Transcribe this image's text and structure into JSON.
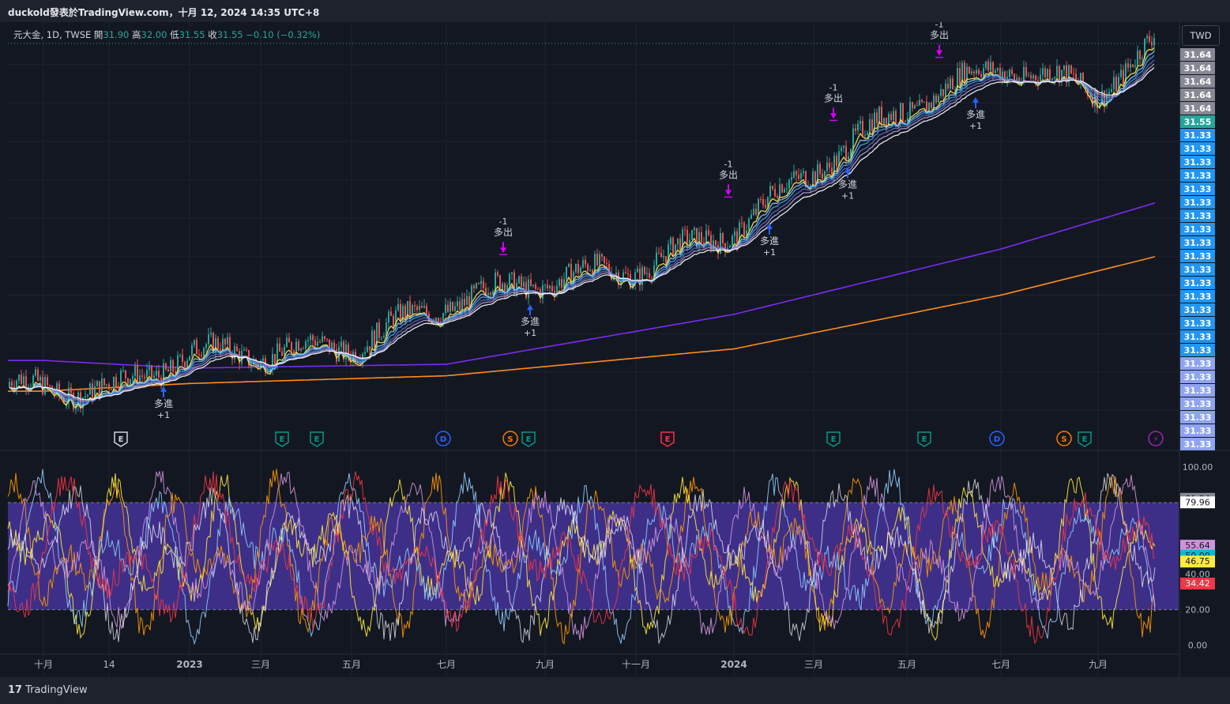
{
  "header": {
    "title": "duckold發表於TradingView.com，十月 12, 2024 14:35 UTC+8"
  },
  "legend": {
    "symbol": "元大金, 1D, TWSE",
    "open_label": "開",
    "open": "31.90",
    "high_label": "高",
    "high": "32.00",
    "low_label": "低",
    "low": "31.55",
    "close_label": "收",
    "close": "31.55",
    "change": "−0.10 (−0.32%)"
  },
  "currency_button": "TWD",
  "footer": {
    "logo_glyph": "17",
    "brand": "TradingView"
  },
  "colors": {
    "background": "#131722",
    "up": "#26a69a",
    "down": "#ef5350",
    "ma_long": "#7b2cf0",
    "ma_longer": "#ff8c1a",
    "ma_short": "#ffe94d",
    "sell_marker": "#d500f9",
    "buy_marker": "#2962ff",
    "osc_band": "#3d2f88"
  },
  "chart_data": [
    {
      "type": "candlestick",
      "symbol": "元大金",
      "x_ticks": [
        "十月",
        "14",
        "2023",
        "三月",
        "五月",
        "七月",
        "九月",
        "十一月",
        "2024",
        "三月",
        "五月",
        "七月",
        "九月"
      ],
      "ylim": [
        21.0,
        31.9
      ],
      "last_close": 31.55,
      "close_path": [
        [
          "十月",
          22.6
        ],
        [
          "14",
          22.5
        ],
        [
          "2023",
          23.5
        ],
        [
          "三月",
          23.5
        ],
        [
          "五月",
          23.7
        ],
        [
          "七月",
          24.8
        ],
        [
          "九月",
          25.4
        ],
        [
          "十一月",
          25.7
        ],
        [
          "2024",
          26.7
        ],
        [
          "三月",
          28.3
        ],
        [
          "五月",
          29.9
        ],
        [
          "七月",
          31.0
        ],
        [
          "九月",
          30.3
        ],
        [
          "end",
          31.55
        ]
      ],
      "moving_averages": [
        {
          "color": "#7b2cf0",
          "path": [
            [
              "十月",
              23.3
            ],
            [
              "2023",
              23.1
            ],
            [
              "七月",
              23.2
            ],
            [
              "2024",
              24.5
            ],
            [
              "七月",
              26.2
            ],
            [
              "end",
              27.4
            ]
          ]
        },
        {
          "color": "#ff8c1a",
          "path": [
            [
              "十月",
              22.5
            ],
            [
              "2023",
              22.7
            ],
            [
              "七月",
              22.9
            ],
            [
              "2024",
              23.6
            ],
            [
              "七月",
              25.0
            ],
            [
              "end",
              26.0
            ]
          ]
        }
      ],
      "signals": [
        {
          "label_top": "多進",
          "label_bottom": "+1",
          "type": "buy",
          "at": "14"
        },
        {
          "label_top": "-1",
          "label_bottom": "多出",
          "type": "sell",
          "at": "七月"
        },
        {
          "label_top": "多進",
          "label_bottom": "+1",
          "type": "buy",
          "at": "七月"
        },
        {
          "label_top": "-1",
          "label_bottom": "多出",
          "type": "sell",
          "at": "2024"
        },
        {
          "label_top": "多進",
          "label_bottom": "+1",
          "type": "buy",
          "at": "2024"
        },
        {
          "label_top": "-1",
          "label_bottom": "多出",
          "type": "sell",
          "at": "三月"
        },
        {
          "label_top": "多進",
          "label_bottom": "+1",
          "type": "buy",
          "at": "三月"
        },
        {
          "label_top": "-1",
          "label_bottom": "多出",
          "type": "sell",
          "at": "五月"
        },
        {
          "label_top": "多進",
          "label_bottom": "+1",
          "type": "buy",
          "at": "五月"
        }
      ],
      "events": [
        {
          "letter": "E",
          "color": "#d1d4dc"
        },
        {
          "letter": "E",
          "color": "#089981"
        },
        {
          "letter": "E",
          "color": "#089981"
        },
        {
          "letter": "D",
          "color": "#2962ff"
        },
        {
          "letter": "S",
          "color": "#f57c00"
        },
        {
          "letter": "E",
          "color": "#089981"
        },
        {
          "letter": "E",
          "color": "#f23645"
        },
        {
          "letter": "E",
          "color": "#089981"
        },
        {
          "letter": "E",
          "color": "#089981"
        },
        {
          "letter": "D",
          "color": "#2962ff"
        },
        {
          "letter": "S",
          "color": "#f57c00"
        },
        {
          "letter": "E",
          "color": "#089981"
        },
        {
          "letter": "⚡",
          "color": "#9c27b0"
        }
      ],
      "price_labels": [
        {
          "text": "31.64",
          "color": "#868993"
        },
        {
          "text": "31.64",
          "color": "#868993"
        },
        {
          "text": "31.64",
          "color": "#868993"
        },
        {
          "text": "31.64",
          "color": "#868993"
        },
        {
          "text": "31.64",
          "color": "#868993"
        },
        {
          "text": "31.55",
          "color": "#26a69a"
        },
        {
          "text": "31.33",
          "color": "#2196f3"
        },
        {
          "text": "31.33",
          "color": "#2196f3"
        },
        {
          "text": "31.33",
          "color": "#2196f3"
        },
        {
          "text": "31.33",
          "color": "#2196f3"
        },
        {
          "text": "31.33",
          "color": "#2196f3"
        },
        {
          "text": "31.33",
          "color": "#2196f3"
        },
        {
          "text": "31.33",
          "color": "#2196f3"
        },
        {
          "text": "31.33",
          "color": "#2196f3"
        },
        {
          "text": "31.33",
          "color": "#2196f3"
        },
        {
          "text": "31.33",
          "color": "#2196f3"
        },
        {
          "text": "31.33",
          "color": "#2196f3"
        },
        {
          "text": "31.33",
          "color": "#2196f3"
        },
        {
          "text": "31.33",
          "color": "#2196f3"
        },
        {
          "text": "31.33",
          "color": "#2196f3"
        },
        {
          "text": "31.33",
          "color": "#2196f3"
        },
        {
          "text": "31.33",
          "color": "#2196f3"
        },
        {
          "text": "31.33",
          "color": "#2196f3"
        },
        {
          "text": "31.33",
          "color": "#8fa4f0"
        },
        {
          "text": "31.33",
          "color": "#8fa4f0"
        },
        {
          "text": "31.33",
          "color": "#8fa4f0"
        },
        {
          "text": "31.33",
          "color": "#8fa4f0"
        },
        {
          "text": "31.33",
          "color": "#8fa4f0"
        },
        {
          "text": "31.33",
          "color": "#8fa4f0"
        },
        {
          "text": "31.33",
          "color": "#8fa4f0"
        }
      ]
    },
    {
      "type": "line",
      "name": "oscillator",
      "ylim": [
        -5,
        108
      ],
      "y_ticks": [
        100,
        80,
        60,
        40,
        20,
        0
      ],
      "y_tick_labels": [
        "100.00",
        "40.00",
        "20.00",
        "0.00"
      ],
      "upper_band": 80,
      "lower_band": 20,
      "value_labels": [
        {
          "text": "81.94",
          "color": "#868993",
          "value": 81.94
        },
        {
          "text": "79.96",
          "color": "#ffffff",
          "value": 79.96
        },
        {
          "text": "55.64",
          "color": "#ce93d8",
          "value": 55.64
        },
        {
          "text": "50.00",
          "color": "#00bcd4",
          "value": 50.0
        },
        {
          "text": "46.75",
          "color": "#ffeb3b",
          "value": 46.75
        },
        {
          "text": "34.42",
          "color": "#f23645",
          "value": 34.42
        }
      ]
    }
  ]
}
